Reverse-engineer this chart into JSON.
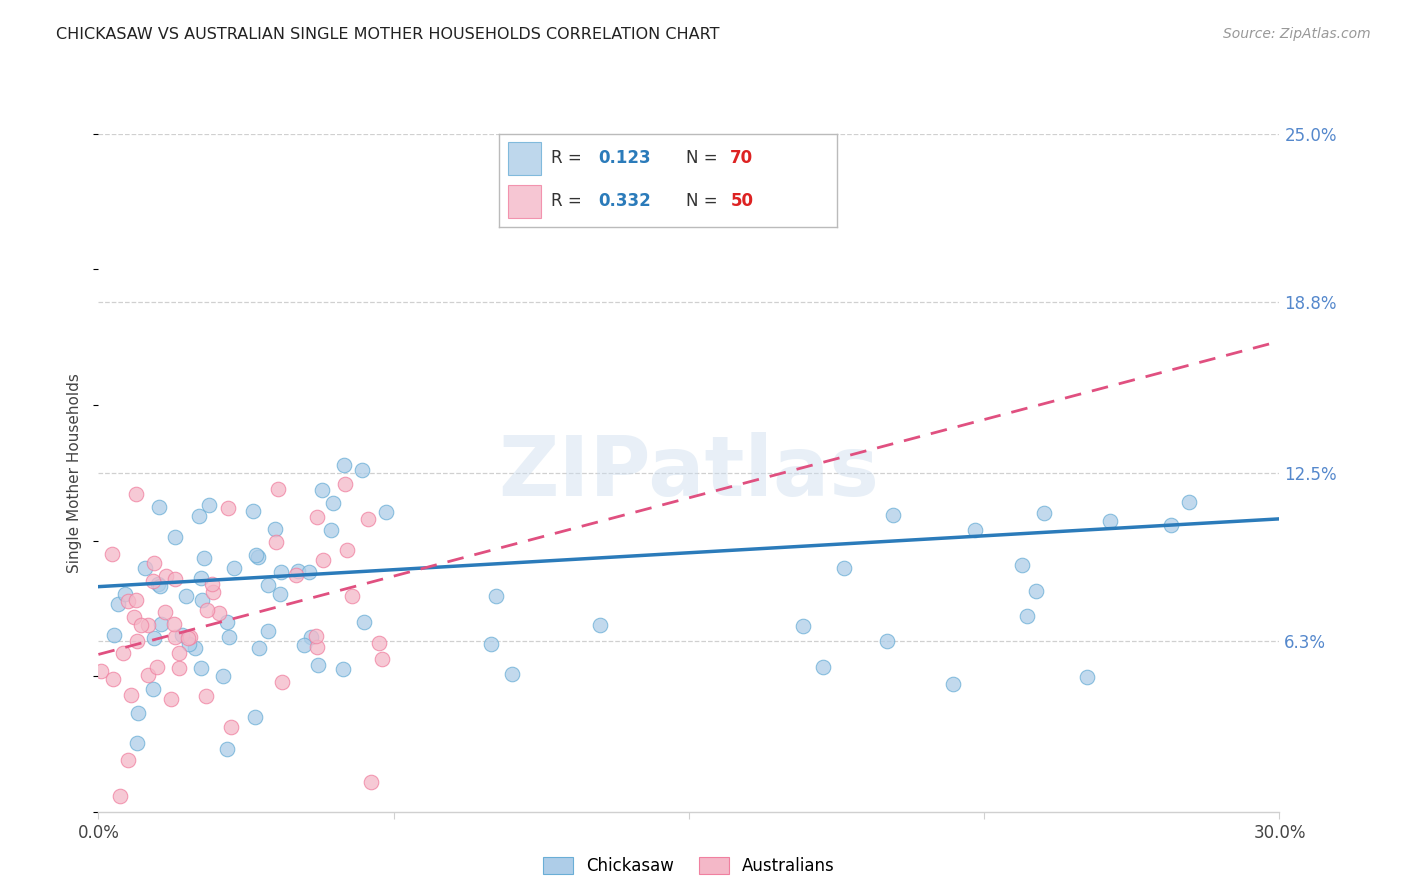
{
  "title": "CHICKASAW VS AUSTRALIAN SINGLE MOTHER HOUSEHOLDS CORRELATION CHART",
  "source": "Source: ZipAtlas.com",
  "ylabel": "Single Mother Households",
  "xlim": [
    0.0,
    0.3
  ],
  "ylim": [
    0.0,
    0.25
  ],
  "ytick_vals": [
    0.063,
    0.125,
    0.188,
    0.25
  ],
  "ytick_labels": [
    "6.3%",
    "12.5%",
    "18.8%",
    "25.0%"
  ],
  "xtick_vals": [
    0.0,
    0.075,
    0.15,
    0.225,
    0.3
  ],
  "xtick_labels": [
    "0.0%",
    "",
    "",
    "",
    "30.0%"
  ],
  "color_blue": "#aecde8",
  "color_pink": "#f4b8c8",
  "color_blue_edge": "#6aaed6",
  "color_pink_edge": "#f080a0",
  "color_blue_line": "#2b7bba",
  "color_pink_line": "#e05080",
  "watermark": "ZIPatlas",
  "background_color": "#ffffff",
  "grid_color": "#d0d0d0",
  "label_color": "#5588cc",
  "figsize": [
    14.06,
    8.92
  ],
  "dpi": 100,
  "seed": 17,
  "n_chickasaw": 70,
  "n_australian": 50,
  "r_chickasaw": 0.123,
  "r_australian": 0.332
}
